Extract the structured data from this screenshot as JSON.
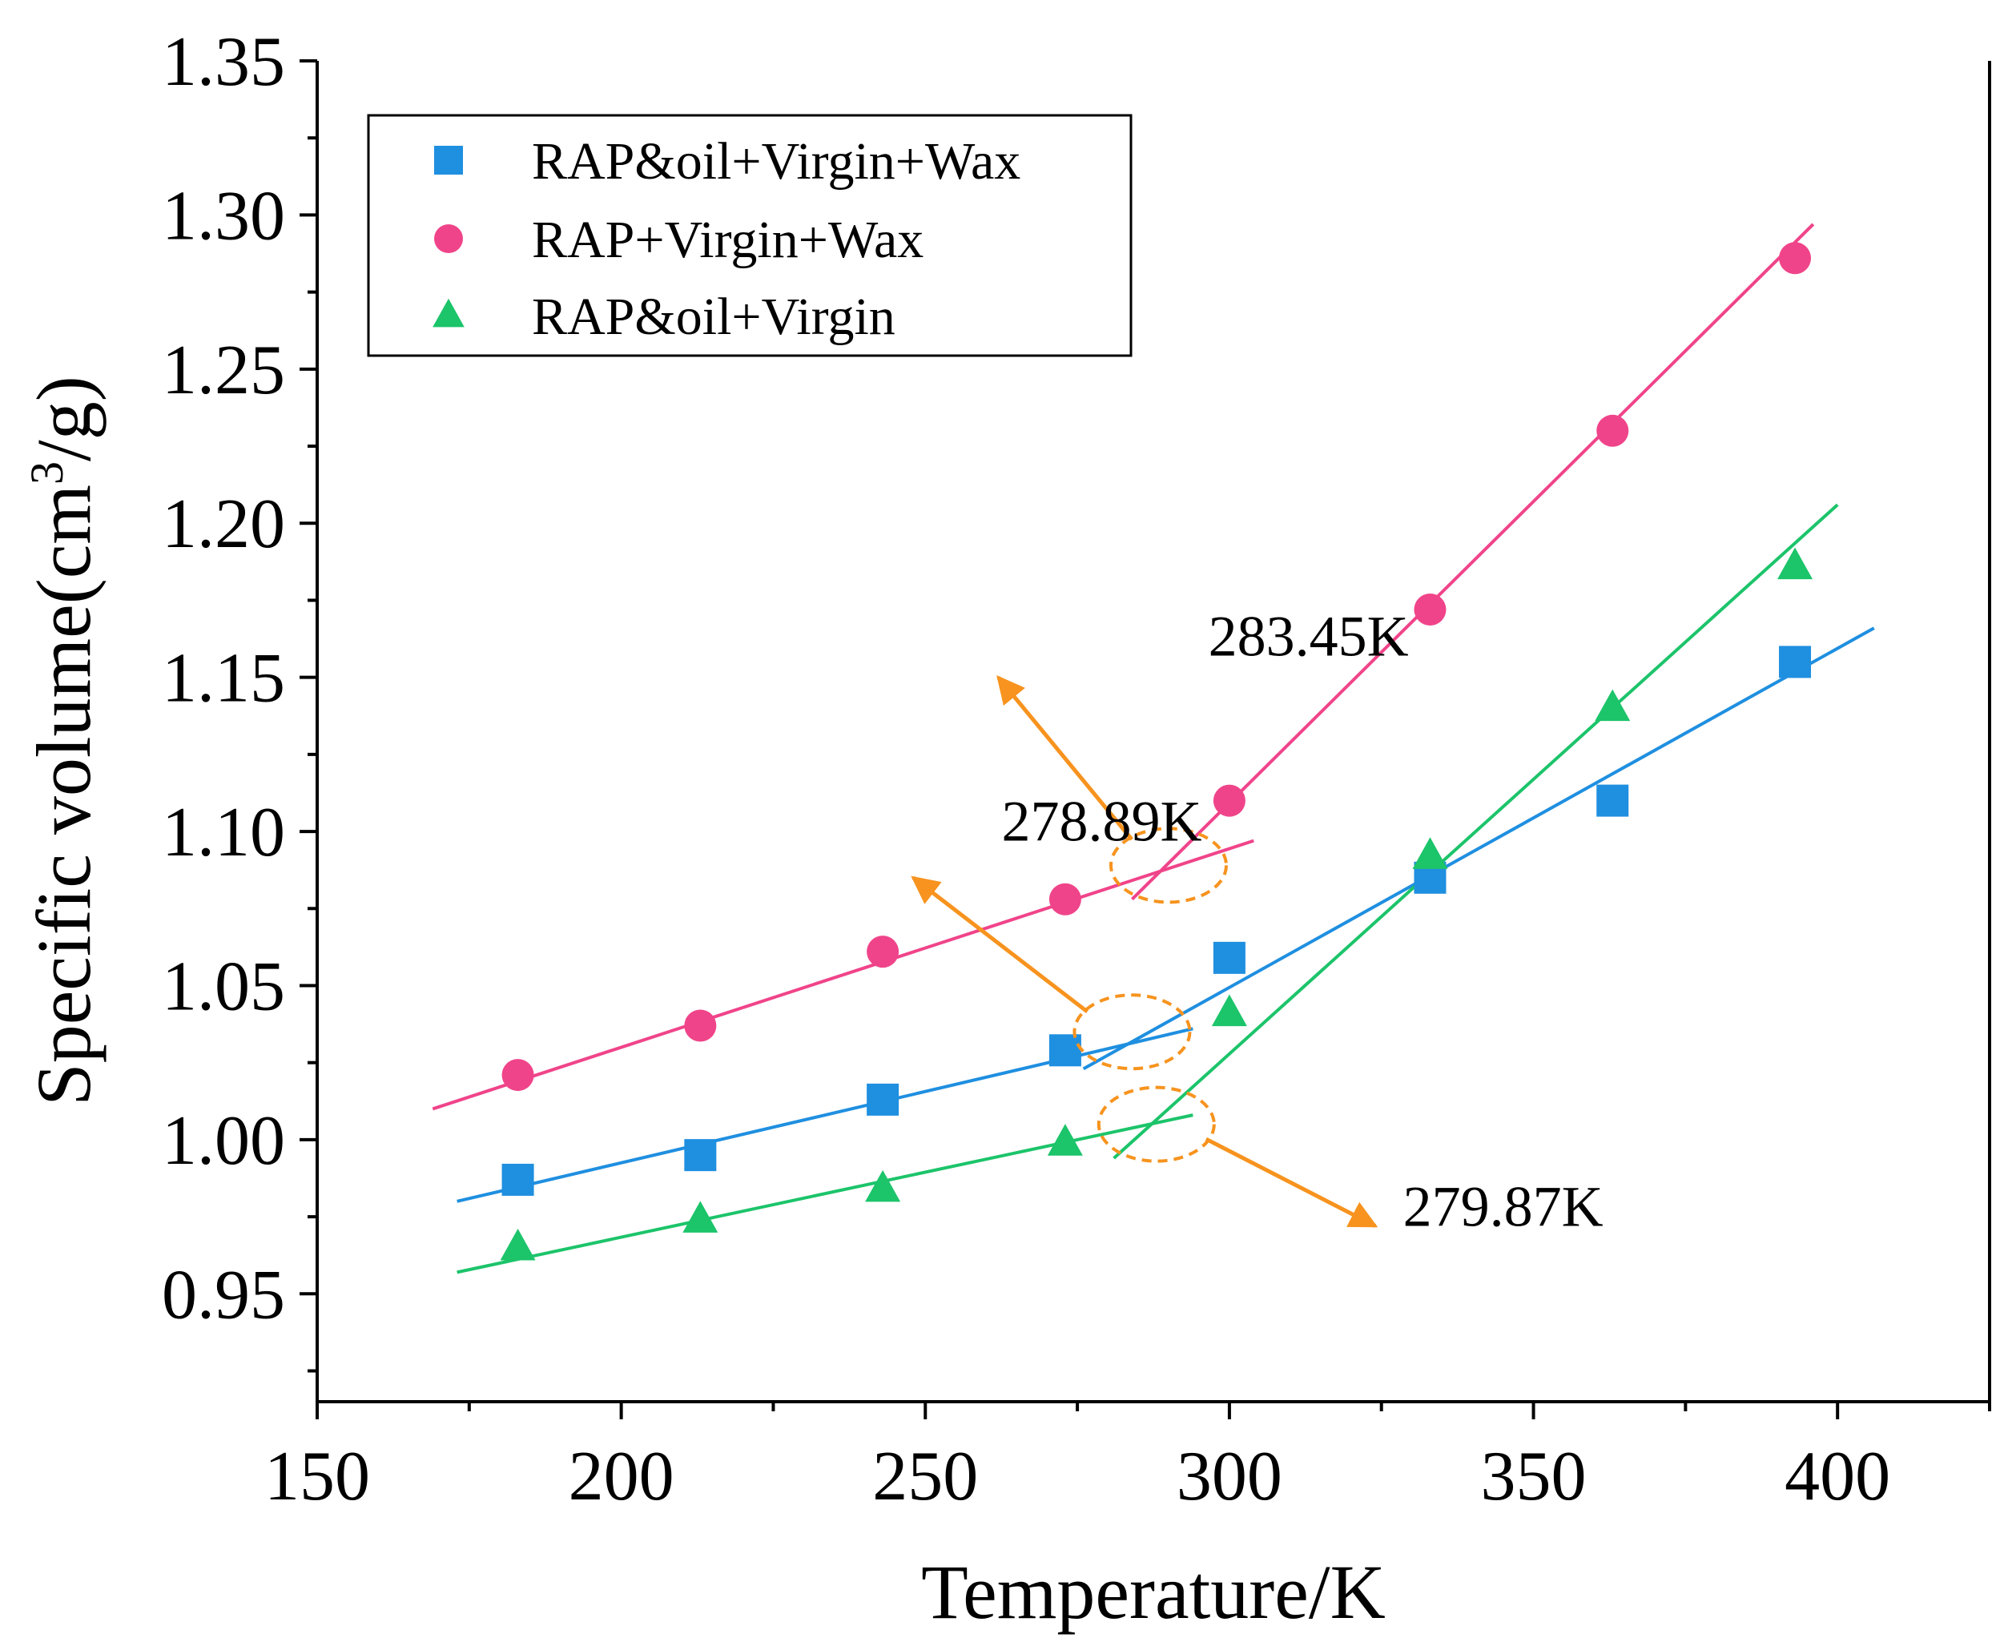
{
  "chart_data": {
    "type": "scatter",
    "xlabel": "Temperature/K",
    "ylabel": "Specific volume(cm³/g)",
    "ylabel_parts": {
      "pre": "Specific volume(cm",
      "sup": "3",
      "post": "/g)"
    },
    "xlim": [
      150,
      425
    ],
    "ylim": [
      0.915,
      1.35
    ],
    "xticks": [
      150,
      200,
      250,
      300,
      350,
      400
    ],
    "xtick_labels": [
      "150",
      "200",
      "250",
      "300",
      "350",
      "400"
    ],
    "yticks": [
      0.95,
      1.0,
      1.05,
      1.1,
      1.15,
      1.2,
      1.25,
      1.3,
      1.35
    ],
    "ytick_labels": [
      "0.95",
      "1.00",
      "1.05",
      "1.10",
      "1.15",
      "1.20",
      "1.25",
      "1.30",
      "1.35"
    ],
    "grid": false,
    "legend_position": "top-left",
    "series": [
      {
        "name": "RAP&oil+Virgin+Wax",
        "marker": "square",
        "color": "#1f8fe0",
        "x": [
          183,
          213,
          243,
          273,
          300,
          333,
          363,
          393
        ],
        "y": [
          0.987,
          0.995,
          1.013,
          1.029,
          1.059,
          1.085,
          1.11,
          1.155
        ],
        "fits": [
          {
            "x": [
              173,
              294
            ],
            "y": [
              0.98,
              1.036
            ]
          },
          {
            "x": [
              276,
              406
            ],
            "y": [
              1.023,
              1.166
            ]
          }
        ]
      },
      {
        "name": "RAP+Virgin+Wax",
        "marker": "circle",
        "color": "#f0448a",
        "x": [
          183,
          213,
          243,
          273,
          300,
          333,
          363,
          393
        ],
        "y": [
          1.021,
          1.037,
          1.061,
          1.078,
          1.11,
          1.172,
          1.23,
          1.286
        ],
        "fits": [
          {
            "x": [
              169,
              304
            ],
            "y": [
              1.01,
              1.097
            ]
          },
          {
            "x": [
              284,
              396
            ],
            "y": [
              1.078,
              1.297
            ]
          }
        ]
      },
      {
        "name": "RAP&oil+Virgin",
        "marker": "triangle",
        "color": "#1cc46a",
        "x": [
          183,
          213,
          243,
          273,
          300,
          333,
          363,
          393
        ],
        "y": [
          0.965,
          0.974,
          0.984,
          0.999,
          1.041,
          1.092,
          1.14,
          1.186
        ],
        "fits": [
          {
            "x": [
              173,
              294
            ],
            "y": [
              0.957,
              1.008
            ]
          },
          {
            "x": [
              281,
              400
            ],
            "y": [
              0.994,
              1.206
            ]
          }
        ]
      }
    ],
    "annotations": [
      {
        "text": "283.45K",
        "text_x": 313,
        "text_y": 1.157,
        "ellipse_x": 290,
        "ellipse_y": 1.089,
        "arrow_to_x": 262,
        "arrow_to_y": 1.15,
        "color": "#f7931e"
      },
      {
        "text": "278.89K",
        "text_x": 279,
        "text_y": 1.097,
        "ellipse_x": 284,
        "ellipse_y": 1.035,
        "arrow_to_x": 248,
        "arrow_to_y": 1.085,
        "color": "#f7931e"
      },
      {
        "text": "279.87K",
        "text_x": 345,
        "text_y": 0.972,
        "ellipse_x": 288,
        "ellipse_y": 1.005,
        "arrow_to_x": 324,
        "arrow_to_y": 0.972,
        "color": "#f7931e"
      }
    ]
  }
}
